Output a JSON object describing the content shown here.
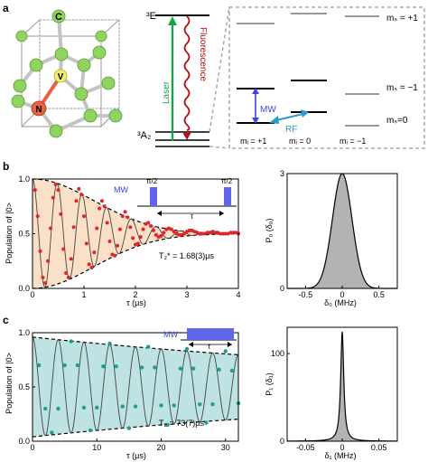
{
  "panel_labels": {
    "a": "a",
    "b": "b",
    "c": "c"
  },
  "crystal": {
    "carbon_label": "C",
    "vacancy_label": "V",
    "nitrogen_label": "N"
  },
  "energy_levels": {
    "excited_label": "³E",
    "ground_label": "³A₂",
    "laser_label": "Laser",
    "fluorescence_label": "Fluorescence"
  },
  "hyperfine": {
    "ms_labels": [
      "mₛ = +1",
      "mₛ = −1",
      "mₛ=0"
    ],
    "mi_labels": [
      "mᵢ = +1",
      "mᵢ = 0",
      "mᵢ = −1"
    ],
    "mw_label": "MW",
    "rf_label": "RF"
  },
  "colors": {
    "carbon": "#8fd45f",
    "vacancy": "#f4ef6a",
    "nitrogen": "#e8623d",
    "laser": "#1aa34a",
    "fluorescence": "#b0101a",
    "mw": "#3a46e0",
    "rf": "#2a9ac8",
    "ramsey_fill": "#fbe0c8",
    "ramsey_points": "#e0242c",
    "echo_fill": "#bfe2e2",
    "echo_points": "#1e9e92",
    "pulse": "#6066e8",
    "dist_fill": "#b3b3b3"
  },
  "chart_b": {
    "ylabel": "Population of |0>",
    "xlabel": "τ (μs)",
    "annotation": "T₂* = 1.68(3)μs",
    "mw_label": "MW",
    "pulse_labels": [
      "π/2",
      "π/2"
    ],
    "tau_label": "τ"
  },
  "chart_c": {
    "ylabel": "Population of |0>",
    "xlabel": "τ (μs)",
    "annotation": "T₂ = 73(7)μs",
    "mw_label": "MW",
    "tau_label": "τ"
  },
  "chart_b_right": {
    "ylabel": "P₀ (δ₀)",
    "xlabel": "δ₀ (MHz)"
  },
  "chart_c_right": {
    "ylabel": "P₁ (δ₁)",
    "xlabel": "δ₁ (MHz)"
  },
  "chart_data": [
    {
      "type": "scatter",
      "xlabel": "τ (μs)",
      "ylabel": "Population of |0>",
      "xlim": [
        0,
        4
      ],
      "ylim": [
        0,
        1
      ],
      "xticks": [
        0,
        1,
        2,
        3,
        4
      ],
      "yticks": [
        0,
        0.5,
        1
      ],
      "model": {
        "T2star_us": 1.68,
        "freq_MHz": 2.08,
        "offset": 0.5
      },
      "x": [
        0.05,
        0.1,
        0.15,
        0.2,
        0.25,
        0.3,
        0.35,
        0.4,
        0.45,
        0.5,
        0.55,
        0.6,
        0.65,
        0.7,
        0.75,
        0.8,
        0.85,
        0.9,
        0.95,
        1.0,
        1.05,
        1.1,
        1.15,
        1.2,
        1.25,
        1.3,
        1.35,
        1.4,
        1.45,
        1.5,
        1.55,
        1.6,
        1.65,
        1.7,
        1.75,
        1.8,
        1.85,
        1.9,
        1.95,
        2.0,
        2.05,
        2.1,
        2.15,
        2.2,
        2.25,
        2.3,
        2.35,
        2.4,
        2.45,
        2.5,
        2.55,
        2.6,
        2.65,
        2.7,
        2.75,
        2.8,
        2.85,
        2.9,
        2.95,
        3.0,
        3.05,
        3.1,
        3.15,
        3.2,
        3.25,
        3.3,
        3.35,
        3.4,
        3.45,
        3.5,
        3.55,
        3.6,
        3.65,
        3.7,
        3.75,
        3.8,
        3.85,
        3.9,
        3.95,
        4.0
      ],
      "y": [
        0.9,
        0.66,
        0.34,
        0.1,
        0.05,
        0.25,
        0.55,
        0.83,
        0.95,
        0.9,
        0.68,
        0.36,
        0.14,
        0.1,
        0.27,
        0.56,
        0.8,
        0.91,
        0.86,
        0.66,
        0.41,
        0.22,
        0.19,
        0.33,
        0.55,
        0.73,
        0.8,
        0.75,
        0.6,
        0.43,
        0.31,
        0.3,
        0.39,
        0.54,
        0.66,
        0.7,
        0.65,
        0.56,
        0.46,
        0.4,
        0.41,
        0.47,
        0.54,
        0.59,
        0.6,
        0.57,
        0.53,
        0.49,
        0.47,
        0.48,
        0.51,
        0.54,
        0.55,
        0.54,
        0.52,
        0.5,
        0.49,
        0.49,
        0.5,
        0.52,
        0.53,
        0.53,
        0.52,
        0.51,
        0.5,
        0.5,
        0.5,
        0.51,
        0.51,
        0.52,
        0.51,
        0.51,
        0.5,
        0.5,
        0.5,
        0.5,
        0.51,
        0.51,
        0.51,
        0.5
      ]
    },
    {
      "type": "area",
      "xlabel": "δ₀ (MHz)",
      "ylabel": "P₀ (δ₀)",
      "xlim": [
        -0.75,
        0.75
      ],
      "ylim": [
        0,
        3
      ],
      "xticks": [
        -0.5,
        0,
        0.5
      ],
      "yticks": [
        0,
        3
      ],
      "x": [
        -0.75,
        -0.6,
        -0.5,
        -0.4,
        -0.3,
        -0.2,
        -0.1,
        0,
        0.1,
        0.2,
        0.3,
        0.4,
        0.5,
        0.6,
        0.75
      ],
      "y": [
        0.01,
        0.06,
        0.19,
        0.49,
        1.08,
        1.9,
        2.67,
        3.0,
        2.67,
        1.9,
        1.08,
        0.49,
        0.19,
        0.06,
        0.01
      ]
    },
    {
      "type": "scatter",
      "xlabel": "τ (μs)",
      "ylabel": "Population of |0>",
      "xlim": [
        0,
        32
      ],
      "ylim": [
        0,
        1
      ],
      "xticks": [
        0,
        10,
        20,
        30
      ],
      "yticks": [
        0,
        0.5,
        1
      ],
      "model": {
        "T2_us": 73,
        "period_us": 4.0,
        "offset": 0.5
      },
      "x": [
        1,
        2,
        3,
        4,
        5,
        6,
        7,
        8,
        9,
        10,
        11,
        12,
        13,
        14,
        15,
        16,
        17,
        18,
        19,
        20,
        21,
        22,
        23,
        24,
        25,
        26,
        27,
        28,
        29,
        30,
        31,
        32
      ],
      "y": [
        0.7,
        0.3,
        0.08,
        0.3,
        0.7,
        0.92,
        0.7,
        0.31,
        0.1,
        0.31,
        0.69,
        0.9,
        0.69,
        0.32,
        0.12,
        0.32,
        0.68,
        0.87,
        0.68,
        0.33,
        0.15,
        0.33,
        0.67,
        0.85,
        0.67,
        0.34,
        0.17,
        0.34,
        0.66,
        0.83,
        0.65,
        0.35
      ]
    },
    {
      "type": "area",
      "xlabel": "δ₁ (MHz)",
      "ylabel": "P₁ (δ₁)",
      "xlim": [
        -0.075,
        0.075
      ],
      "ylim": [
        0,
        130
      ],
      "xticks": [
        -0.05,
        0,
        0.05
      ],
      "yticks": [
        0,
        100
      ],
      "x": [
        -0.075,
        -0.05,
        -0.03,
        -0.02,
        -0.01,
        -0.005,
        -0.0025,
        0,
        0.0025,
        0.005,
        0.01,
        0.02,
        0.03,
        0.05,
        0.075
      ],
      "y": [
        0.5,
        1.0,
        2.6,
        5.7,
        21,
        56,
        94,
        125,
        94,
        56,
        21,
        5.7,
        2.6,
        1.0,
        0.5
      ]
    }
  ]
}
